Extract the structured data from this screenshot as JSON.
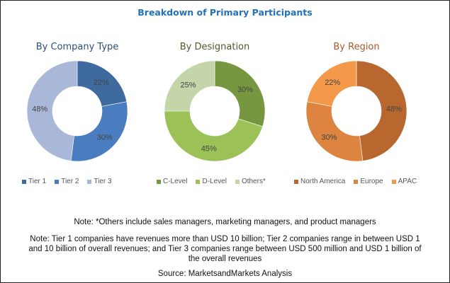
{
  "title": "Breakdown of Primary Participants",
  "chart_data": [
    {
      "type": "pie",
      "title": "By Company Type",
      "title_color": "#2e4f7c",
      "categories": [
        "Tier 1",
        "Tier 2",
        "Tier 3"
      ],
      "values": [
        22,
        30,
        48
      ],
      "labels": [
        "22%",
        "30%",
        "48%"
      ],
      "colors": [
        "#3f6a9e",
        "#4a7cc0",
        "#a9b8d9"
      ],
      "donut": true,
      "legend": "bottom"
    },
    {
      "type": "pie",
      "title": "By Designation",
      "title_color": "#4f5a2a",
      "categories": [
        "C-Level",
        "D-Level",
        "Others*"
      ],
      "values": [
        30,
        45,
        25
      ],
      "labels": [
        "30%",
        "45%",
        "25%"
      ],
      "colors": [
        "#76963f",
        "#9bc157",
        "#c3d5a9"
      ],
      "donut": true,
      "legend": "bottom"
    },
    {
      "type": "pie",
      "title": "By Region",
      "title_color": "#a8572a",
      "categories": [
        "North America",
        "Europe",
        "APAC"
      ],
      "values": [
        48,
        30,
        22
      ],
      "labels": [
        "48%",
        "30%",
        "22%"
      ],
      "colors": [
        "#b8682e",
        "#dd8440",
        "#f4984a"
      ],
      "donut": true,
      "legend": "bottom"
    }
  ],
  "notes": {
    "others": "Note: *Others include sales managers, marketing managers, and product managers",
    "tiers_line1": "Note: Tier 1 companies have revenues more than USD 10 billion; Tier 2 companies range in between USD 1",
    "tiers_line2": "and 10 billion of overall revenues; and Tier 3 companies range between USD 500 million and USD 1 billion of",
    "tiers_line3": "the overall revenues",
    "source": "Source: MarketsandMarkets Analysis"
  }
}
